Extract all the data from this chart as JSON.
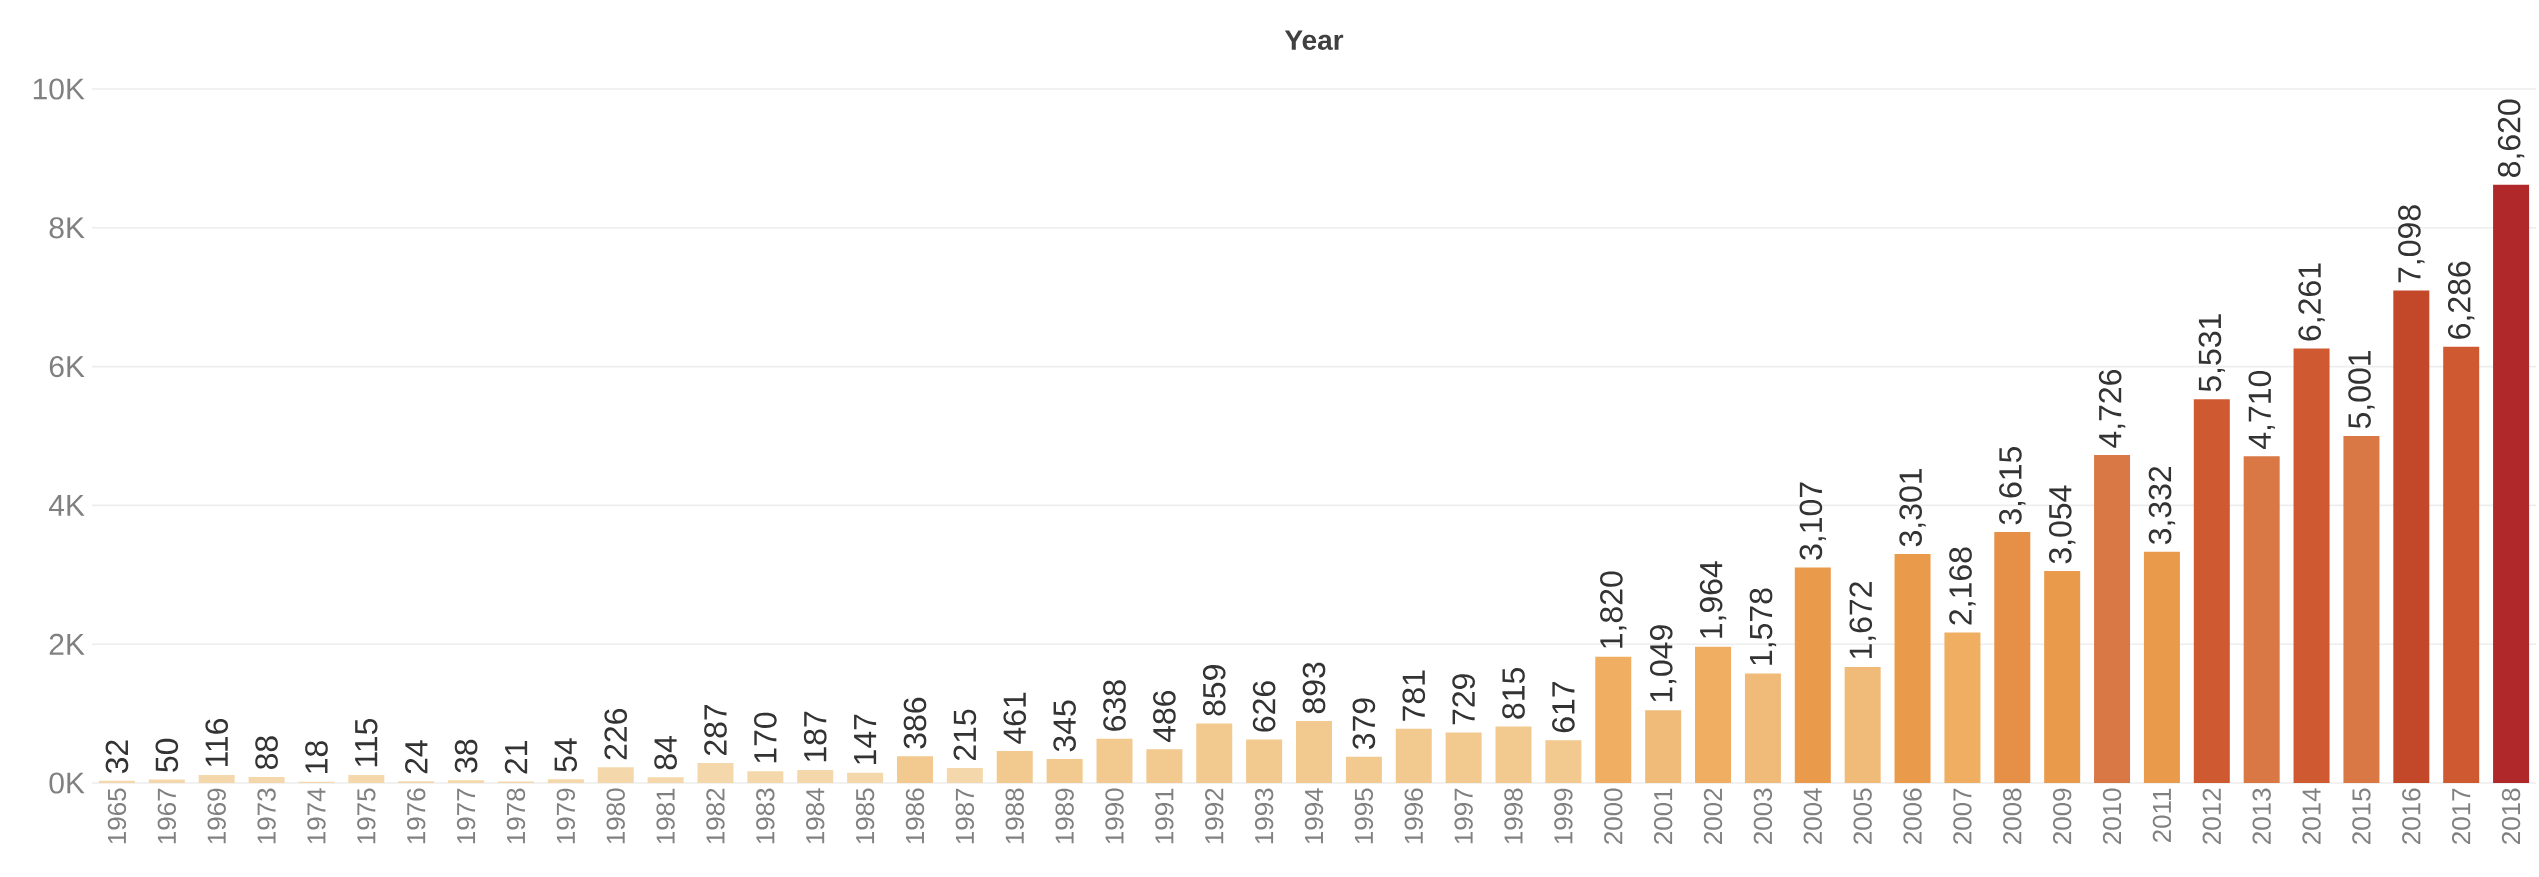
{
  "chart_data": {
    "type": "bar",
    "title": "Year",
    "categories": [
      "1965",
      "1967",
      "1969",
      "1973",
      "1974",
      "1975",
      "1976",
      "1977",
      "1978",
      "1979",
      "1980",
      "1981",
      "1982",
      "1983",
      "1984",
      "1985",
      "1986",
      "1987",
      "1988",
      "1989",
      "1990",
      "1991",
      "1992",
      "1993",
      "1994",
      "1995",
      "1996",
      "1997",
      "1998",
      "1999",
      "2000",
      "2001",
      "2002",
      "2003",
      "2004",
      "2005",
      "2006",
      "2007",
      "2008",
      "2009",
      "2010",
      "2011",
      "2012",
      "2013",
      "2014",
      "2015",
      "2016",
      "2017",
      "2018"
    ],
    "values": [
      32,
      50,
      116,
      88,
      18,
      115,
      24,
      38,
      21,
      54,
      226,
      84,
      287,
      170,
      187,
      147,
      386,
      215,
      461,
      345,
      638,
      486,
      859,
      626,
      893,
      379,
      781,
      729,
      815,
      617,
      1820,
      1049,
      1964,
      1578,
      3107,
      1672,
      3301,
      2168,
      3615,
      3054,
      4726,
      3332,
      5531,
      4710,
      6261,
      5001,
      7098,
      6286,
      8620
    ],
    "value_labels": [
      "32",
      "50",
      "116",
      "88",
      "18",
      "115",
      "24",
      "38",
      "21",
      "54",
      "226",
      "84",
      "287",
      "170",
      "187",
      "147",
      "386",
      "215",
      "461",
      "345",
      "638",
      "486",
      "859",
      "626",
      "893",
      "379",
      "781",
      "729",
      "815",
      "617",
      "1,820",
      "1,049",
      "1,964",
      "1,578",
      "3,107",
      "1,672",
      "3,301",
      "2,168",
      "3,615",
      "3,054",
      "4,726",
      "3,332",
      "5,531",
      "4,710",
      "6,261",
      "5,001",
      "7,098",
      "6,286",
      "8,620"
    ],
    "colors": [
      "#f4d8ab",
      "#f4d8ab",
      "#f4d8ab",
      "#f4d8ab",
      "#f4d8ab",
      "#f4d8ab",
      "#f4d8ab",
      "#f4d8ab",
      "#f4d8ab",
      "#f4d8ab",
      "#f4d8ab",
      "#f4d8ab",
      "#f4d8ab",
      "#f4d8ab",
      "#f4d8ab",
      "#f4d8ab",
      "#f2c98f",
      "#f4d8ab",
      "#f2c98f",
      "#f2c98f",
      "#f2c98f",
      "#f2c98f",
      "#f2c98f",
      "#f2c98f",
      "#f2c98f",
      "#f2c98f",
      "#f2c98f",
      "#f2c98f",
      "#f2c98f",
      "#f2c98f",
      "#efae62",
      "#f0bb78",
      "#efae62",
      "#f0bb78",
      "#ea9a4b",
      "#f0bb78",
      "#ea9a4b",
      "#efae62",
      "#e68f47",
      "#ea9a4b",
      "#da7845",
      "#ea9a4b",
      "#cf5a31",
      "#da7845",
      "#cf5a31",
      "#da7845",
      "#c3482a",
      "#cf5a31",
      "#b0282a"
    ],
    "ylim": [
      0,
      10000
    ],
    "yticks": [
      {
        "value": 0,
        "label": "0K"
      },
      {
        "value": 2000,
        "label": "2K"
      },
      {
        "value": 4000,
        "label": "4K"
      },
      {
        "value": 6000,
        "label": "6K"
      },
      {
        "value": 8000,
        "label": "8K"
      },
      {
        "value": 10000,
        "label": "10K"
      }
    ],
    "grid": "y"
  }
}
